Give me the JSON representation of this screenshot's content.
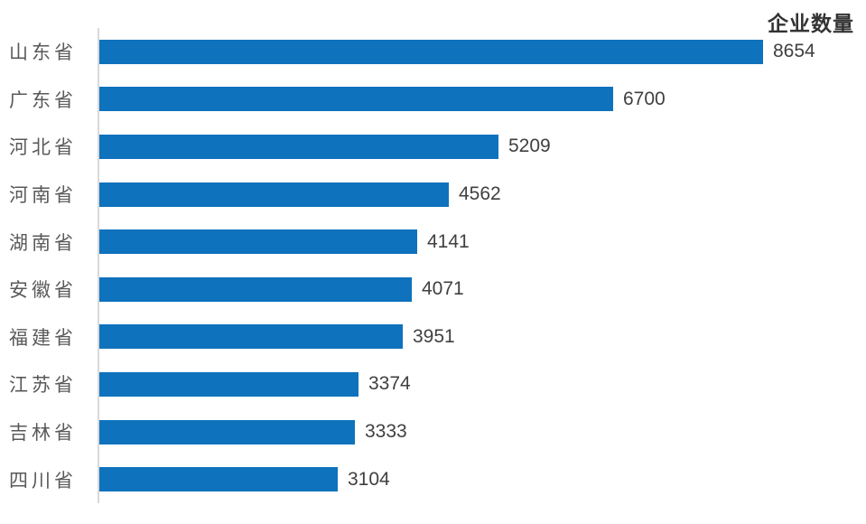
{
  "chart_data": {
    "type": "bar",
    "orientation": "horizontal",
    "title": "企业数量",
    "categories": [
      "山东省",
      "广东省",
      "河北省",
      "河南省",
      "湖南省",
      "安徽省",
      "福建省",
      "江苏省",
      "吉林省",
      "四川省"
    ],
    "values": [
      8654,
      6700,
      5209,
      4562,
      4141,
      4071,
      3951,
      3374,
      3333,
      3104
    ],
    "xlim": [
      0,
      8654
    ],
    "grid": false,
    "legend_position": "none",
    "data_labels": true,
    "bar_color": "#0e72bd",
    "axis_line_color": "#d9d9d9",
    "category_label_color": "#595959",
    "value_label_color": "#404040",
    "title_color": "#333333"
  }
}
